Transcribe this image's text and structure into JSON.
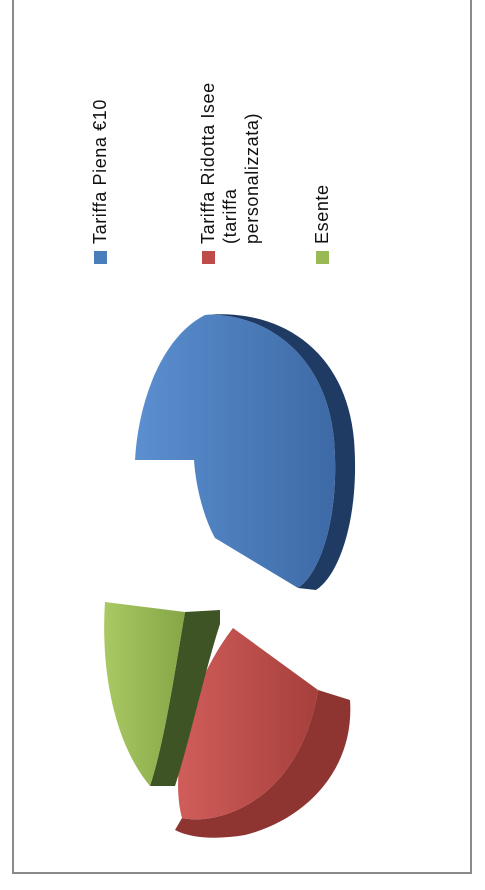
{
  "chart_data": {
    "type": "pie",
    "title": "",
    "legend_placement": "right",
    "series": [
      {
        "name": "",
        "values": [
          {
            "label": "Tariffa Piena €10",
            "value": 52
          },
          {
            "label": "Tariffa Ridotta Isee (tariffa personalizzata)",
            "value": 31
          },
          {
            "label": "Esente",
            "value": 17
          }
        ]
      }
    ],
    "legend": [
      {
        "lines": [
          "Tariffa Piena €10"
        ],
        "color": "#4a7ebb"
      },
      {
        "lines": [
          "Tariffa Ridotta Isee",
          "(tariffa",
          "personalizzata)"
        ],
        "color": "#be4b48"
      },
      {
        "lines": [
          "Esente"
        ],
        "color": "#98b954"
      }
    ],
    "colors": {
      "blue": "#4a7ebb",
      "blue_dark": "#1f3b64",
      "red": "#be4b48",
      "red_dark": "#8e3532",
      "green": "#98b954",
      "green_dark": "#3f5424"
    }
  }
}
